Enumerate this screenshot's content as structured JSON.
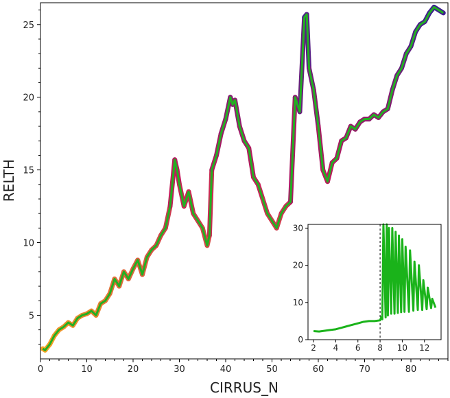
{
  "colors": {
    "main_line": "#22b022",
    "edge_low": "#f5a623",
    "edge_mid": "#c2185b",
    "edge_high": "#3b1f8f",
    "inset_line": "#1ab31a",
    "axis": "#000000"
  },
  "chart_data": [
    {
      "type": "line",
      "xlabel": "CIRRUS_N",
      "ylabel": "RELTH",
      "xlim": [
        0,
        88
      ],
      "ylim": [
        2,
        26.5
      ],
      "xticks": [
        0,
        10,
        20,
        30,
        40,
        50,
        60,
        70,
        80
      ],
      "yticks": [
        5,
        10,
        15,
        20,
        25
      ],
      "grid": false,
      "edge_colormap": "plasma",
      "x": [
        0.5,
        1,
        2,
        3,
        4,
        5,
        6,
        7,
        8,
        9,
        10,
        11,
        12,
        13,
        14,
        15,
        16,
        17,
        18,
        19,
        20,
        21,
        22,
        23,
        24,
        25,
        26,
        27,
        28,
        29,
        29.5,
        30,
        31,
        32,
        33,
        34,
        35,
        36,
        36.5,
        37,
        38,
        39,
        40,
        41,
        41.5,
        42,
        43,
        44,
        45,
        46,
        47,
        48,
        49,
        50,
        51,
        52,
        53,
        54,
        55,
        56,
        57,
        57.5,
        58,
        59,
        60,
        61,
        62,
        63,
        64,
        65,
        66,
        67,
        68,
        69,
        70,
        71,
        72,
        73,
        74,
        75,
        76,
        77,
        78,
        79,
        80,
        81,
        82,
        83,
        84,
        85,
        86,
        87
      ],
      "y": [
        2.7,
        2.6,
        3.0,
        3.6,
        4.0,
        4.2,
        4.5,
        4.3,
        4.8,
        5.0,
        5.1,
        5.3,
        5.0,
        5.8,
        6.0,
        6.5,
        7.5,
        7.0,
        8.0,
        7.5,
        8.2,
        8.8,
        7.8,
        9.0,
        9.5,
        9.8,
        10.5,
        11.0,
        12.5,
        15.7,
        15.0,
        14.0,
        12.5,
        13.5,
        12.0,
        11.5,
        11.0,
        9.8,
        10.5,
        15.0,
        16.0,
        17.5,
        18.5,
        20.0,
        19.5,
        19.8,
        18.0,
        17.0,
        16.5,
        14.5,
        14.0,
        13.0,
        12.0,
        11.5,
        11.0,
        12.0,
        12.5,
        12.8,
        20.0,
        19.0,
        25.5,
        25.7,
        22.0,
        20.5,
        18.0,
        15.0,
        14.2,
        15.5,
        15.8,
        17.0,
        17.2,
        18.0,
        17.8,
        18.3,
        18.5,
        18.5,
        18.8,
        18.6,
        19.0,
        19.2,
        20.5,
        21.5,
        22.0,
        23.0,
        23.5,
        24.5,
        25.0,
        25.2,
        25.8,
        26.2,
        26.0,
        25.8
      ]
    },
    {
      "type": "line",
      "inset": true,
      "xlim": [
        1.5,
        13.5
      ],
      "ylim": [
        0,
        31
      ],
      "xticks": [
        2,
        4,
        6,
        8,
        10,
        12
      ],
      "yticks": [
        0,
        10,
        20,
        30
      ],
      "vline_x": 8,
      "x": [
        2,
        2.5,
        3,
        3.5,
        4,
        4.5,
        5,
        5.5,
        6,
        6.5,
        7,
        7.5,
        8,
        8.1,
        8.2,
        8.3,
        8.5,
        8.6,
        8.7,
        8.8,
        9.0,
        9.1,
        9.3,
        9.4,
        9.6,
        9.7,
        9.9,
        10.0,
        10.2,
        10.3,
        10.6,
        10.7,
        11.0,
        11.1,
        11.4,
        11.5,
        11.8,
        11.9,
        12.2,
        12.3,
        12.6,
        12.7,
        13.0
      ],
      "y": [
        2.3,
        2.2,
        2.4,
        2.6,
        2.8,
        3.2,
        3.6,
        4.0,
        4.4,
        4.8,
        5.0,
        5.0,
        5.2,
        6.0,
        5.5,
        31,
        6.0,
        31,
        6.5,
        30,
        7.0,
        30,
        7.0,
        29,
        7.2,
        28,
        7.4,
        27,
        7.5,
        25,
        7.5,
        24,
        7.8,
        21,
        8.0,
        20,
        8.0,
        16,
        8.2,
        14,
        8.5,
        11,
        8.6
      ]
    }
  ]
}
